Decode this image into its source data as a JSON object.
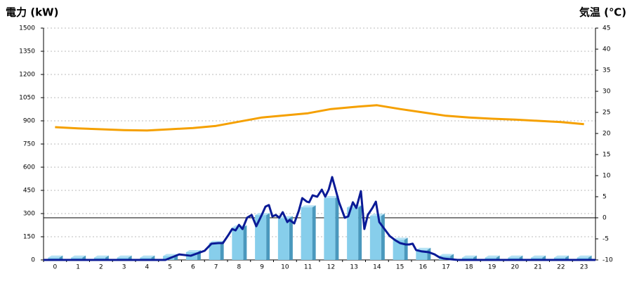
{
  "chart_data": {
    "type": "combo",
    "ylabel": "電力 (kW)",
    "y2label": "気温 (℃)",
    "label_colors": {
      "y": "#1a7fc1",
      "y2": "#f08a00"
    },
    "categories": [
      "0",
      "1",
      "2",
      "3",
      "4",
      "5",
      "6",
      "7",
      "8",
      "9",
      "10",
      "11",
      "12",
      "13",
      "14",
      "15",
      "16",
      "17",
      "18",
      "19",
      "20",
      "21",
      "22",
      "23"
    ],
    "ylim": [
      0,
      1500
    ],
    "yticks": [
      0,
      150,
      300,
      450,
      600,
      750,
      900,
      1050,
      1200,
      1350,
      1500
    ],
    "y2lim": [
      -10,
      45
    ],
    "y2ticks": [
      -10,
      -5,
      0,
      5,
      10,
      15,
      20,
      25,
      30,
      35,
      40,
      45
    ],
    "grid": true,
    "y2_zero_line": true,
    "series": [
      {
        "type": "bar",
        "color": "#87ceeb",
        "values": [
          15,
          15,
          15,
          15,
          15,
          25,
          50,
          110,
          210,
          290,
          270,
          340,
          400,
          340,
          285,
          130,
          65,
          25,
          15,
          15,
          15,
          15,
          15,
          15
        ]
      },
      {
        "type": "line",
        "color": "#0a1a96",
        "x": [
          -0.5,
          4.8,
          5.4,
          5.9,
          6.5,
          6.8,
          7.1,
          7.3,
          7.55,
          7.7,
          7.85,
          8.0,
          8.15,
          8.35,
          8.55,
          8.75,
          9.0,
          9.15,
          9.3,
          9.45,
          9.6,
          9.75,
          9.9,
          10.1,
          10.2,
          10.4,
          10.6,
          10.75,
          10.95,
          11.05,
          11.2,
          11.4,
          11.6,
          11.75,
          11.9,
          12.05,
          12.2,
          12.35,
          12.6,
          12.75,
          12.95,
          13.1,
          13.3,
          13.45,
          13.6,
          13.8,
          13.95,
          14.1,
          14.35,
          14.55,
          14.8,
          15.0,
          15.25,
          15.4,
          15.55,
          15.7,
          15.95,
          16.25,
          16.5,
          16.7,
          16.9,
          17.15,
          17.5,
          23.5
        ],
        "values": [
          0,
          0,
          36,
          27,
          59,
          105,
          109,
          109,
          164,
          200,
          191,
          227,
          200,
          273,
          291,
          218,
          295,
          345,
          355,
          282,
          291,
          273,
          309,
          245,
          259,
          236,
          318,
          400,
          377,
          373,
          418,
          409,
          455,
          409,
          455,
          536,
          455,
          373,
          273,
          282,
          373,
          336,
          445,
          200,
          291,
          336,
          377,
          245,
          195,
          155,
          127,
          109,
          100,
          100,
          105,
          64,
          55,
          50,
          36,
          18,
          9,
          5,
          0,
          0
        ]
      },
      {
        "type": "line",
        "axis": "y2",
        "color": "#f5a000",
        "values": [
          21.5,
          21.2,
          21.0,
          20.8,
          20.7,
          21.0,
          21.3,
          21.8,
          22.8,
          23.8,
          24.3,
          24.8,
          25.8,
          26.3,
          26.7,
          25.8,
          25.0,
          24.2,
          23.8,
          23.5,
          23.3,
          23.0,
          22.7,
          22.2
        ]
      }
    ]
  }
}
